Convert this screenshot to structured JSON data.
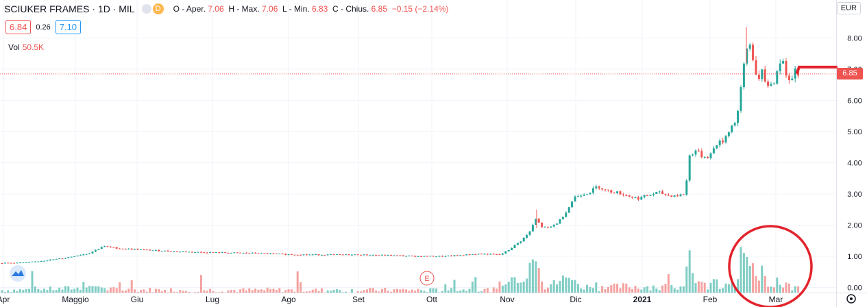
{
  "legend": {
    "symbol": "SCIUKER FRAMES · 1D · MIL",
    "d_badge": "D",
    "open_label": "O - Aper.",
    "open": "7.06",
    "high_label": "H - Max.",
    "high": "7.06",
    "low_label": "L - Min.",
    "low": "6.83",
    "close_label": "C - Chius.",
    "close": "6.85",
    "change": "−0.15 (−2.14%)"
  },
  "quote": {
    "sell": "6.84",
    "spread": "0.26",
    "buy": "7.10"
  },
  "volume": {
    "label": "Vol",
    "value": "50.5K"
  },
  "currency": "EUR",
  "last_price": "6.85",
  "earnings_marker": "E",
  "colors": {
    "up": "#26a69a",
    "down": "#ef5350",
    "up_vol": "#7fcdc4",
    "down_vol": "#f4a2a0",
    "annotation": "#e3232c"
  },
  "chart_data": {
    "type": "candlestick",
    "y_axis": {
      "ticks": [
        "8.00",
        "7.00",
        "6.00",
        "5.00",
        "4.00",
        "3.00",
        "2.00",
        "1.00",
        "0.00"
      ],
      "range": [
        0,
        8.5
      ],
      "position": "right"
    },
    "x_axis": {
      "ticks": [
        "Apr",
        "Maggio",
        "Giu",
        "Lug",
        "Ago",
        "Set",
        "Ott",
        "Nov",
        "Dic",
        "2021",
        "Feb",
        "Mar"
      ]
    },
    "grid": true,
    "series": [
      {
        "type": "price",
        "approx_close_path": [
          {
            "x": "Apr",
            "y": 0.78
          },
          {
            "x": "Maggio",
            "y": 1.0
          },
          {
            "x": "Giu",
            "y": 1.28
          },
          {
            "x": "Lug",
            "y": 1.12
          },
          {
            "x": "Ago",
            "y": 1.05
          },
          {
            "x": "Set",
            "y": 1.03
          },
          {
            "x": "Ott",
            "y": 1.0
          },
          {
            "x": "Nov",
            "y": 1.1
          },
          {
            "x": "Nov (mid)",
            "y": 2.3
          },
          {
            "x": "Dic",
            "y": 2.9
          },
          {
            "x": "Dic (mid)",
            "y": 3.2
          },
          {
            "x": "2021",
            "y": 2.9
          },
          {
            "x": "2021 (mid)",
            "y": 3.0
          },
          {
            "x": "2021 (late)",
            "y": 4.3
          },
          {
            "x": "Feb",
            "y": 4.6
          },
          {
            "x": "Feb (mid)",
            "y": 6.8
          },
          {
            "x": "Feb (peak)",
            "y": 8.3
          },
          {
            "x": "Feb (late)",
            "y": 6.4
          },
          {
            "x": "Mar",
            "y": 7.0
          },
          {
            "x": "Mar (last)",
            "y": 6.85
          }
        ]
      },
      {
        "type": "volume",
        "note": "volume histogram at bottom of pane"
      }
    ],
    "annotations": [
      "horizontal dotted last-price line at 6.85",
      "hand-drawn red circle around February volume bars",
      "red horizontal stroke at ~7.0 right of last candle"
    ]
  }
}
